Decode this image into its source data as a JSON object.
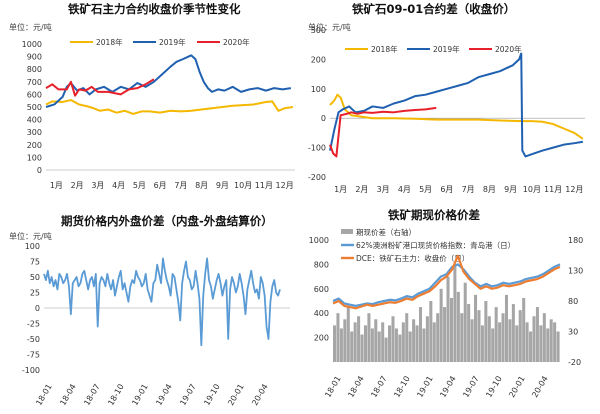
{
  "colors": {
    "y2018": "#f5b800",
    "y2019": "#2060b0",
    "y2020": "#e8202a",
    "blue_light": "#5b9bd5",
    "orange": "#ed7d31",
    "gray": "#a6a6a6"
  },
  "chart_data": [
    {
      "type": "line",
      "title": "铁矿石主力合约收盘价季节性变化",
      "unit": "单位：元/吨",
      "ylim": [
        0,
        1000
      ],
      "yticks": [
        "0",
        "100",
        "200",
        "300",
        "400",
        "500",
        "600",
        "700",
        "800",
        "900",
        "1000"
      ],
      "xticks": [
        "1月",
        "2月",
        "3月",
        "4月",
        "5月",
        "6月",
        "7月",
        "8月",
        "9月",
        "10月",
        "11月",
        "12月"
      ],
      "series": [
        {
          "name": "2018年",
          "x": [
            0,
            0.3,
            0.8,
            1.2,
            1.6,
            2.0,
            2.3,
            2.6,
            3.0,
            3.4,
            3.8,
            4.2,
            4.6,
            5.0,
            5.5,
            6.0,
            6.5,
            7.0,
            7.5,
            8.0,
            8.5,
            9.0,
            9.5,
            10.0,
            10.3,
            10.6,
            10.9,
            11.2,
            11.5,
            11.9
          ],
          "values": [
            520,
            545,
            540,
            555,
            520,
            505,
            490,
            470,
            480,
            455,
            470,
            445,
            465,
            465,
            455,
            470,
            465,
            470,
            480,
            490,
            500,
            510,
            515,
            520,
            530,
            540,
            545,
            470,
            490,
            500
          ]
        },
        {
          "name": "2019年",
          "x": [
            0,
            0.4,
            0.8,
            1.0,
            1.2,
            1.5,
            1.8,
            2.1,
            2.4,
            2.8,
            3.2,
            3.6,
            4.0,
            4.4,
            4.8,
            5.2,
            5.6,
            6.0,
            6.3,
            6.6,
            7.0,
            7.2,
            7.4,
            7.6,
            7.8,
            8.0,
            8.3,
            8.6,
            9.0,
            9.4,
            9.8,
            10.2,
            10.6,
            11.0,
            11.4,
            11.8
          ],
          "values": [
            500,
            520,
            580,
            660,
            690,
            630,
            650,
            600,
            640,
            660,
            620,
            660,
            640,
            690,
            660,
            700,
            760,
            820,
            860,
            880,
            910,
            880,
            780,
            700,
            650,
            620,
            640,
            630,
            660,
            620,
            640,
            650,
            630,
            650,
            640,
            650
          ]
        },
        {
          "name": "2020年",
          "x": [
            0,
            0.3,
            0.6,
            1.0,
            1.2,
            1.4,
            1.6,
            1.9,
            2.2,
            2.5,
            2.8,
            3.0,
            3.3,
            3.6,
            4.0,
            4.4,
            4.8,
            5.2
          ],
          "values": [
            650,
            680,
            640,
            640,
            700,
            590,
            640,
            630,
            660,
            620,
            620,
            620,
            610,
            600,
            640,
            650,
            680,
            720
          ]
        }
      ]
    },
    {
      "type": "line",
      "title": "铁矿石09-01合约差（收盘价）",
      "unit": "单位：元/吨",
      "ylim": [
        -200,
        300
      ],
      "yticks": [
        "-200",
        "-100",
        "0",
        "100",
        "200",
        "300"
      ],
      "xticks": [
        "1月",
        "2月",
        "3月",
        "4月",
        "5月",
        "6月",
        "7月",
        "8月",
        "9月",
        "10月",
        "11月",
        "12月"
      ],
      "series": [
        {
          "name": "2018年",
          "x": [
            0,
            0.2,
            0.35,
            0.5,
            0.7,
            1.0,
            1.5,
            2.0,
            3.0,
            4.0,
            5.0,
            6.0,
            7.0,
            8.0,
            9.0,
            9.5,
            10.0,
            10.5,
            11.0,
            11.5,
            11.9
          ],
          "values": [
            45,
            60,
            80,
            70,
            30,
            10,
            5,
            0,
            0,
            -2,
            -5,
            -5,
            -5,
            -8,
            -10,
            -10,
            -12,
            -20,
            -35,
            -50,
            -70
          ]
        },
        {
          "name": "2019年",
          "x": [
            0,
            0.2,
            0.4,
            0.6,
            0.9,
            1.2,
            1.6,
            2.0,
            2.5,
            3.0,
            3.5,
            4.0,
            4.5,
            5.0,
            5.5,
            6.0,
            6.5,
            7.0,
            7.5,
            8.0,
            8.3,
            8.6,
            8.9,
            9.0,
            9.05,
            9.2,
            9.6,
            10.0,
            10.5,
            11.0,
            11.5,
            11.9
          ],
          "values": [
            -110,
            -40,
            20,
            30,
            40,
            20,
            25,
            40,
            35,
            50,
            60,
            75,
            80,
            90,
            100,
            110,
            120,
            140,
            150,
            160,
            170,
            180,
            200,
            220,
            -110,
            -130,
            -120,
            -110,
            -100,
            -90,
            -85,
            -80
          ]
        },
        {
          "name": "2020年",
          "x": [
            0,
            0.15,
            0.3,
            0.5,
            0.8,
            1.0,
            1.3,
            1.6,
            2.0,
            2.5,
            3.0,
            3.5,
            4.0,
            4.5,
            5.0
          ],
          "values": [
            -90,
            -120,
            -130,
            10,
            15,
            20,
            15,
            20,
            18,
            22,
            20,
            25,
            28,
            30,
            35
          ]
        }
      ]
    },
    {
      "type": "line",
      "title": "期货价格内外盘价差（内盘-外盘结算价）",
      "unit": "单位：元/吨",
      "ylim": [
        -100,
        100
      ],
      "yticks": [
        "-100",
        "-75",
        "-50",
        "-25",
        "0",
        "25",
        "50",
        "75",
        "100"
      ],
      "xticks": [
        "18-01",
        "18-04",
        "18-07",
        "18-10",
        "19-01",
        "19-04",
        "19-07",
        "19-10",
        "20-01",
        "20-04"
      ],
      "series": [
        {
          "name": "内外盘价差",
          "values": [
            55,
            45,
            60,
            40,
            50,
            35,
            45,
            30,
            55,
            50,
            40,
            45,
            55,
            35,
            -10,
            40,
            45,
            50,
            35,
            40,
            55,
            60,
            45,
            30,
            45,
            50,
            35,
            55,
            -30,
            40,
            50,
            45,
            35,
            55,
            40,
            30,
            45,
            20,
            35,
            50,
            60,
            30,
            40,
            25,
            10,
            35,
            45,
            40,
            60,
            50,
            45,
            35,
            40,
            55,
            30,
            20,
            10,
            40,
            45,
            70,
            55,
            40,
            80,
            60,
            45,
            35,
            20,
            55,
            50,
            30,
            10,
            -20,
            40,
            60,
            75,
            50,
            45,
            30,
            35,
            60,
            40,
            15,
            -60,
            20,
            55,
            80,
            45,
            35,
            15,
            30,
            45,
            55,
            40,
            20,
            35,
            45,
            -50,
            30,
            50,
            40,
            25,
            35,
            55,
            40,
            20,
            -10,
            30,
            45,
            60,
            40,
            25,
            30,
            15,
            50,
            40,
            20,
            -30,
            -50,
            10,
            35,
            45,
            25,
            20,
            30
          ]
        }
      ]
    },
    {
      "type": "line",
      "title": "铁矿期现价格价差",
      "ylim_left": [
        0,
        1000
      ],
      "ylim_right": [
        -20,
        180
      ],
      "yticks_left": [
        "0",
        "200",
        "400",
        "600",
        "800",
        "1000"
      ],
      "yticks_right": [
        "-20",
        "30",
        "80",
        "130",
        "180"
      ],
      "xticks": [
        "18-01",
        "18-04",
        "18-07",
        "18-10",
        "19-01",
        "19-04",
        "19-07",
        "19-10",
        "20-01",
        "20-04"
      ],
      "series": [
        {
          "name": "期现价差（右轴）",
          "axis": "right",
          "values": [
            40,
            60,
            35,
            50,
            70,
            30,
            45,
            55,
            25,
            40,
            60,
            35,
            50,
            30,
            45,
            20,
            40,
            55,
            35,
            25,
            45,
            60,
            30,
            50,
            40,
            70,
            35,
            55,
            80,
            45,
            60,
            100,
            70,
            120,
            85,
            140,
            95,
            60,
            110,
            75,
            50,
            90,
            65,
            40,
            80,
            55,
            35,
            70,
            45,
            60,
            90,
            50,
            75,
            40,
            65,
            85,
            45,
            30,
            55,
            70,
            40,
            60,
            35,
            50,
            45,
            30
          ]
        },
        {
          "name": "62%澳洲粉矿港口现货价格指数：青岛港（日）",
          "axis": "left",
          "values": [
            500,
            520,
            480,
            470,
            460,
            470,
            480,
            475,
            490,
            500,
            510,
            505,
            520,
            540,
            530,
            560,
            580,
            600,
            650,
            700,
            720,
            780,
            800,
            760,
            700,
            650,
            620,
            640,
            620,
            630,
            650,
            640,
            650,
            660,
            680,
            690,
            700,
            720,
            750,
            780,
            800
          ]
        },
        {
          "name": "DCE：铁矿石主力：收盘价（日）",
          "axis": "left",
          "values": [
            480,
            500,
            460,
            450,
            440,
            455,
            470,
            460,
            470,
            480,
            490,
            485,
            500,
            520,
            510,
            540,
            560,
            580,
            620,
            670,
            700,
            760,
            870,
            740,
            680,
            640,
            600,
            620,
            600,
            610,
            630,
            620,
            630,
            640,
            660,
            670,
            680,
            700,
            730,
            760,
            780
          ]
        }
      ]
    }
  ]
}
